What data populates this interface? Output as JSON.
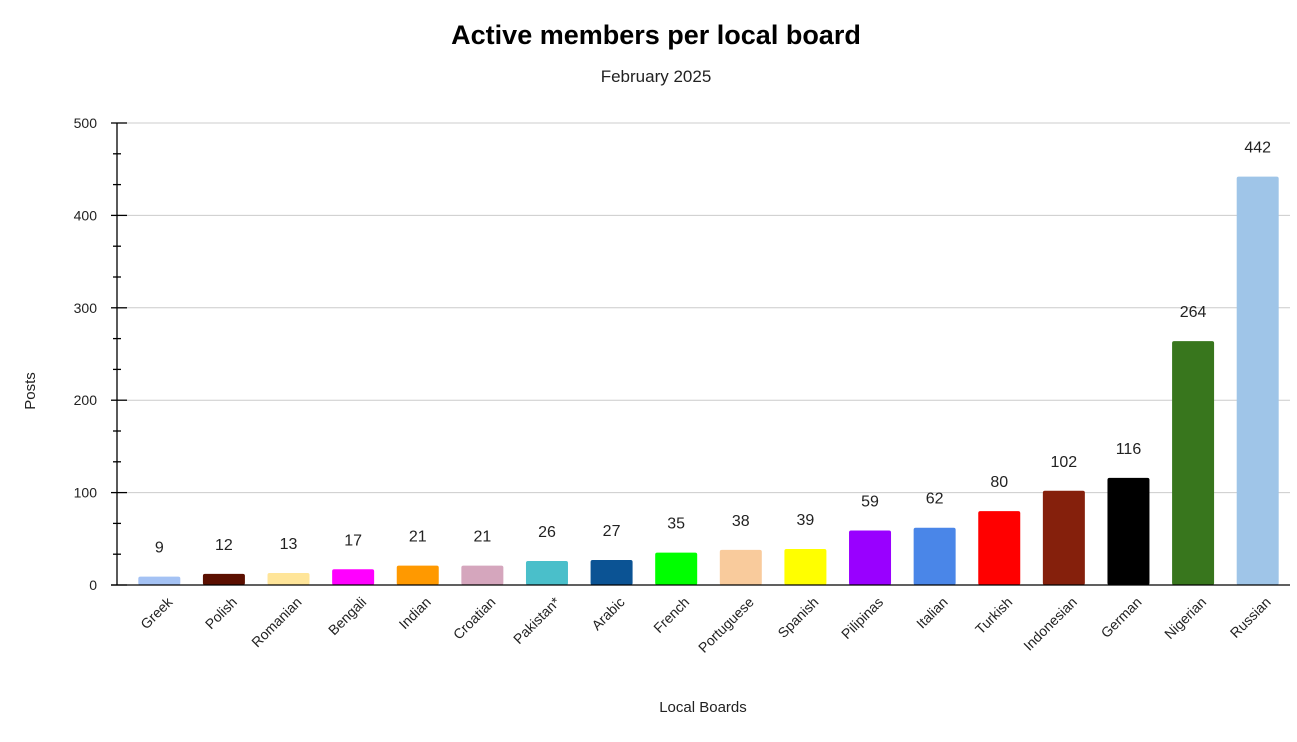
{
  "chart_data": {
    "type": "bar",
    "title": "Active members per local board",
    "subtitle": "February 2025",
    "xlabel": "Local Boards",
    "ylabel": "Posts",
    "ylim": [
      0,
      500
    ],
    "yticks": [
      0,
      100,
      200,
      300,
      400,
      500
    ],
    "grid": true,
    "legend": "none",
    "categories": [
      "Greek",
      "Polish",
      "Romanian",
      "Bengali",
      "Indian",
      "Croatian",
      "Pakistan*",
      "Arabic",
      "French",
      "Portuguese",
      "Spanish",
      "Pilipinas",
      "Italian",
      "Turkish",
      "Indonesian",
      "German",
      "Nigerian",
      "Russian"
    ],
    "values": [
      9,
      12,
      13,
      17,
      21,
      21,
      26,
      27,
      35,
      38,
      39,
      59,
      62,
      80,
      102,
      116,
      264,
      442
    ],
    "colors": [
      "#a4c2f4",
      "#5b0f00",
      "#ffe599",
      "#ff00ff",
      "#ff9900",
      "#d5a6bd",
      "#4abfca",
      "#0b5394",
      "#00ff00",
      "#f9cb9c",
      "#ffff00",
      "#9900ff",
      "#4a86e8",
      "#ff0000",
      "#85200c",
      "#000000",
      "#38761d",
      "#9fc5e8"
    ]
  }
}
